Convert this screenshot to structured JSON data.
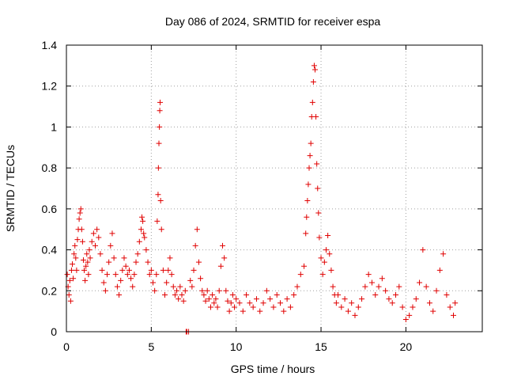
{
  "chart_data": {
    "type": "scatter",
    "title": "Day 086 of 2024, SRMTID for receiver espa",
    "xlabel": "GPS time / hours",
    "ylabel": "SRMTID / TECUs",
    "xlim": [
      0,
      24.5
    ],
    "ylim": [
      0,
      1.4
    ],
    "xticks": [
      0,
      5,
      10,
      15,
      20
    ],
    "xtick_labels": [
      "0",
      "5",
      "10",
      "15",
      "20"
    ],
    "yticks": [
      0,
      0.2,
      0.4,
      0.6,
      0.8,
      1.0,
      1.2,
      1.4
    ],
    "ytick_labels": [
      "0",
      "0.2",
      "0.4",
      "0.6",
      "0.8",
      "1",
      "1.2",
      "1.4"
    ],
    "grid": true,
    "marker": "+",
    "color": "#e00000",
    "series": [
      {
        "name": "SRMTID",
        "points": [
          [
            0.05,
            0.28
          ],
          [
            0.1,
            0.22
          ],
          [
            0.15,
            0.18
          ],
          [
            0.2,
            0.25
          ],
          [
            0.25,
            0.15
          ],
          [
            0.3,
            0.3
          ],
          [
            0.35,
            0.33
          ],
          [
            0.4,
            0.26
          ],
          [
            0.45,
            0.38
          ],
          [
            0.5,
            0.42
          ],
          [
            0.55,
            0.36
          ],
          [
            0.6,
            0.3
          ],
          [
            0.65,
            0.45
          ],
          [
            0.7,
            0.5
          ],
          [
            0.75,
            0.55
          ],
          [
            0.8,
            0.58
          ],
          [
            0.85,
            0.6
          ],
          [
            0.9,
            0.5
          ],
          [
            0.95,
            0.44
          ],
          [
            1.0,
            0.35
          ],
          [
            1.05,
            0.3
          ],
          [
            1.1,
            0.25
          ],
          [
            1.15,
            0.32
          ],
          [
            1.2,
            0.38
          ],
          [
            1.25,
            0.34
          ],
          [
            1.3,
            0.28
          ],
          [
            1.35,
            0.4
          ],
          [
            1.4,
            0.36
          ],
          [
            1.5,
            0.44
          ],
          [
            1.6,
            0.48
          ],
          [
            1.7,
            0.42
          ],
          [
            1.8,
            0.5
          ],
          [
            1.9,
            0.46
          ],
          [
            2.0,
            0.38
          ],
          [
            2.1,
            0.3
          ],
          [
            2.2,
            0.24
          ],
          [
            2.3,
            0.2
          ],
          [
            2.4,
            0.28
          ],
          [
            2.5,
            0.34
          ],
          [
            2.6,
            0.42
          ],
          [
            2.7,
            0.48
          ],
          [
            2.8,
            0.36
          ],
          [
            2.9,
            0.28
          ],
          [
            3.0,
            0.22
          ],
          [
            3.1,
            0.18
          ],
          [
            3.2,
            0.25
          ],
          [
            3.3,
            0.3
          ],
          [
            3.4,
            0.36
          ],
          [
            3.5,
            0.32
          ],
          [
            3.6,
            0.28
          ],
          [
            3.7,
            0.3
          ],
          [
            3.8,
            0.26
          ],
          [
            3.9,
            0.22
          ],
          [
            4.0,
            0.28
          ],
          [
            4.1,
            0.34
          ],
          [
            4.2,
            0.38
          ],
          [
            4.3,
            0.44
          ],
          [
            4.4,
            0.5
          ],
          [
            4.45,
            0.56
          ],
          [
            4.5,
            0.54
          ],
          [
            4.55,
            0.48
          ],
          [
            4.6,
            0.46
          ],
          [
            4.7,
            0.4
          ],
          [
            4.8,
            0.34
          ],
          [
            4.9,
            0.28
          ],
          [
            5.0,
            0.3
          ],
          [
            5.1,
            0.24
          ],
          [
            5.2,
            0.2
          ],
          [
            5.3,
            0.28
          ],
          [
            5.35,
            0.54
          ],
          [
            5.4,
            0.67
          ],
          [
            5.42,
            0.8
          ],
          [
            5.45,
            0.92
          ],
          [
            5.48,
            1.0
          ],
          [
            5.5,
            1.08
          ],
          [
            5.52,
            1.12
          ],
          [
            5.55,
            0.64
          ],
          [
            5.6,
            0.5
          ],
          [
            5.7,
            0.3
          ],
          [
            5.8,
            0.18
          ],
          [
            5.9,
            0.24
          ],
          [
            6.0,
            0.3
          ],
          [
            6.1,
            0.36
          ],
          [
            6.2,
            0.28
          ],
          [
            6.3,
            0.22
          ],
          [
            6.4,
            0.18
          ],
          [
            6.5,
            0.2
          ],
          [
            6.6,
            0.16
          ],
          [
            6.7,
            0.22
          ],
          [
            6.8,
            0.18
          ],
          [
            6.9,
            0.15
          ],
          [
            7.0,
            0.2
          ],
          [
            7.05,
            0.0
          ],
          [
            7.1,
            0.0
          ],
          [
            7.2,
            0.0
          ],
          [
            7.3,
            0.25
          ],
          [
            7.4,
            0.22
          ],
          [
            7.5,
            0.3
          ],
          [
            7.6,
            0.42
          ],
          [
            7.7,
            0.5
          ],
          [
            7.8,
            0.34
          ],
          [
            7.9,
            0.26
          ],
          [
            8.0,
            0.2
          ],
          [
            8.1,
            0.18
          ],
          [
            8.2,
            0.15
          ],
          [
            8.3,
            0.2
          ],
          [
            8.4,
            0.16
          ],
          [
            8.5,
            0.12
          ],
          [
            8.6,
            0.18
          ],
          [
            8.7,
            0.14
          ],
          [
            8.8,
            0.16
          ],
          [
            8.9,
            0.12
          ],
          [
            9.0,
            0.2
          ],
          [
            9.1,
            0.32
          ],
          [
            9.2,
            0.42
          ],
          [
            9.3,
            0.36
          ],
          [
            9.4,
            0.2
          ],
          [
            9.5,
            0.15
          ],
          [
            9.6,
            0.1
          ],
          [
            9.7,
            0.14
          ],
          [
            9.8,
            0.18
          ],
          [
            9.9,
            0.12
          ],
          [
            10.0,
            0.16
          ],
          [
            10.2,
            0.14
          ],
          [
            10.4,
            0.1
          ],
          [
            10.6,
            0.18
          ],
          [
            10.8,
            0.14
          ],
          [
            11.0,
            0.12
          ],
          [
            11.2,
            0.16
          ],
          [
            11.4,
            0.1
          ],
          [
            11.6,
            0.14
          ],
          [
            11.8,
            0.2
          ],
          [
            12.0,
            0.16
          ],
          [
            12.2,
            0.12
          ],
          [
            12.4,
            0.18
          ],
          [
            12.6,
            0.14
          ],
          [
            12.8,
            0.1
          ],
          [
            13.0,
            0.16
          ],
          [
            13.2,
            0.12
          ],
          [
            13.4,
            0.18
          ],
          [
            13.6,
            0.22
          ],
          [
            13.8,
            0.28
          ],
          [
            14.0,
            0.32
          ],
          [
            14.1,
            0.48
          ],
          [
            14.15,
            0.56
          ],
          [
            14.2,
            0.64
          ],
          [
            14.25,
            0.72
          ],
          [
            14.3,
            0.8
          ],
          [
            14.35,
            0.86
          ],
          [
            14.4,
            0.92
          ],
          [
            14.45,
            1.05
          ],
          [
            14.5,
            1.12
          ],
          [
            14.55,
            1.22
          ],
          [
            14.6,
            1.3
          ],
          [
            14.65,
            1.28
          ],
          [
            14.7,
            1.05
          ],
          [
            14.75,
            0.82
          ],
          [
            14.8,
            0.7
          ],
          [
            14.85,
            0.58
          ],
          [
            14.9,
            0.46
          ],
          [
            15.0,
            0.36
          ],
          [
            15.1,
            0.28
          ],
          [
            15.2,
            0.34
          ],
          [
            15.3,
            0.4
          ],
          [
            15.4,
            0.47
          ],
          [
            15.5,
            0.38
          ],
          [
            15.6,
            0.3
          ],
          [
            15.7,
            0.22
          ],
          [
            15.8,
            0.18
          ],
          [
            15.9,
            0.14
          ],
          [
            16.0,
            0.18
          ],
          [
            16.2,
            0.12
          ],
          [
            16.4,
            0.16
          ],
          [
            16.6,
            0.1
          ],
          [
            16.8,
            0.14
          ],
          [
            17.0,
            0.08
          ],
          [
            17.2,
            0.12
          ],
          [
            17.4,
            0.16
          ],
          [
            17.6,
            0.22
          ],
          [
            17.8,
            0.28
          ],
          [
            18.0,
            0.24
          ],
          [
            18.2,
            0.18
          ],
          [
            18.4,
            0.22
          ],
          [
            18.6,
            0.26
          ],
          [
            18.8,
            0.2
          ],
          [
            19.0,
            0.16
          ],
          [
            19.2,
            0.14
          ],
          [
            19.4,
            0.18
          ],
          [
            19.6,
            0.22
          ],
          [
            19.8,
            0.12
          ],
          [
            20.0,
            0.06
          ],
          [
            20.2,
            0.08
          ],
          [
            20.4,
            0.12
          ],
          [
            20.6,
            0.16
          ],
          [
            20.8,
            0.24
          ],
          [
            21.0,
            0.4
          ],
          [
            21.2,
            0.22
          ],
          [
            21.4,
            0.14
          ],
          [
            21.6,
            0.1
          ],
          [
            21.8,
            0.2
          ],
          [
            22.0,
            0.3
          ],
          [
            22.2,
            0.38
          ],
          [
            22.4,
            0.18
          ],
          [
            22.6,
            0.12
          ],
          [
            22.8,
            0.08
          ],
          [
            22.9,
            0.14
          ]
        ]
      }
    ]
  }
}
